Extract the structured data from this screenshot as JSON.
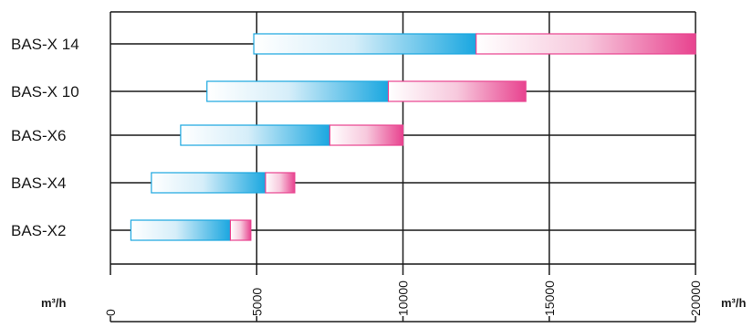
{
  "chart_data": {
    "type": "bar",
    "orientation": "horizontal",
    "categories": [
      "BAS-X 14",
      "BAS-X 10",
      "BAS-X6",
      "BAS-X4",
      "BAS-X2"
    ],
    "series": [
      {
        "values": [
          [
            4900,
            12500
          ],
          [
            3300,
            9500
          ],
          [
            2400,
            7500
          ],
          [
            1400,
            5300
          ],
          [
            700,
            4100
          ]
        ]
      },
      {
        "values": [
          [
            12500,
            20000
          ],
          [
            9500,
            14200
          ],
          [
            7500,
            10000
          ],
          [
            5300,
            6300
          ],
          [
            4100,
            4800
          ]
        ]
      }
    ],
    "xlim": [
      0,
      20000
    ],
    "x_ticks": [
      "0",
      "5000",
      "10000",
      "15000",
      "20000"
    ],
    "x_unit_left": "m³/h",
    "x_unit_right": "m³/h",
    "grid": true,
    "colors": {
      "series1": "#1aa7e0",
      "series2": "#e8438f",
      "grid": "#1a1a1a"
    }
  }
}
